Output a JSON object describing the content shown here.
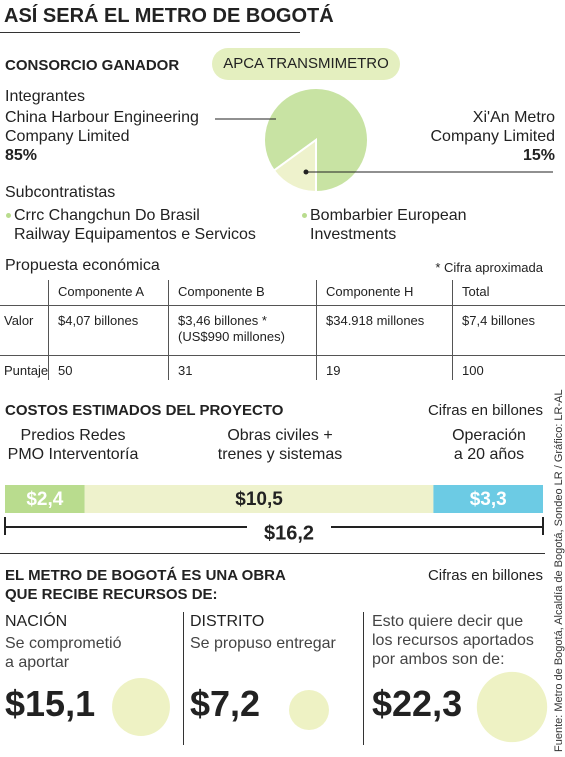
{
  "title": "ASÍ SERÁ EL METRO DE BOGOTÁ",
  "consortium": {
    "label": "CONSORCIO GANADOR",
    "winner": "APCA TRANSMIMETRO"
  },
  "members": {
    "heading": "Integrantes",
    "names": [
      "China Harbour Engineering\nCompany Limited",
      "Xi'An Metro\nCompany Limited"
    ],
    "values": [
      85,
      15
    ],
    "value_labels": [
      "85%",
      "15%"
    ],
    "colors": [
      "#c8e3a3",
      "#eef2cc"
    ]
  },
  "subcontractors": {
    "heading": "Subcontratistas",
    "items": [
      "Crrc Changchun Do Brasil\nRailway Equipamentos e Servicos",
      "Bombarbier European\nInvestments"
    ]
  },
  "proposal": {
    "title": "Propuesta económica",
    "note": "* Cifra aproximada",
    "columns": [
      "Componente A",
      "Componente B",
      "Componente H",
      "Total"
    ],
    "rows": [
      {
        "label": "Valor",
        "cells": [
          "$4,07 billones",
          "$3,46 billones *\n(US$990 millones)",
          "$34.918 millones",
          "$7,4 billones"
        ]
      },
      {
        "label": "Puntaje",
        "cells": [
          "50",
          "31",
          "19",
          "100"
        ]
      }
    ]
  },
  "costs": {
    "title": "COSTOS ESTIMADOS DEL PROYECTO",
    "unit": "Cifras en billones",
    "segments": [
      {
        "label": "Predios Redes\nPMO Interventoría",
        "value": 2.4,
        "value_label": "$2,4",
        "color": "#b9dc8e"
      },
      {
        "label": "Obras civiles +\ntrenes y sistemas",
        "value": 10.5,
        "value_label": "$10,5",
        "color": "#eef2cc"
      },
      {
        "label": "Operación\na 20 años",
        "value": 3.3,
        "value_label": "$3,3",
        "color": "#6ccbe4"
      }
    ],
    "total": 16.2,
    "total_label": "$16,2"
  },
  "funding": {
    "title": "EL METRO DE BOGOTÁ ES UNA OBRA\nQUE RECIBE RECURSOS DE:",
    "unit": "Cifras en billones",
    "color": "#eef2c4",
    "items": [
      {
        "heading": "NACIÓN",
        "text": "Se comprometió\na aportar",
        "value": 15.1,
        "value_label": "$15,1"
      },
      {
        "heading": "DISTRITO",
        "text": "Se propuso entregar",
        "value": 7.2,
        "value_label": "$7,2"
      },
      {
        "text": "Esto quiere decir que\nlos recursos aportados\npor ambos son de:",
        "value": 22.3,
        "value_label": "$22,3"
      }
    ]
  },
  "source": "Fuente: Metro de Bogotá, Alcaldía de Bogotá, Sondeo LR / Gráfico: LR-AL"
}
